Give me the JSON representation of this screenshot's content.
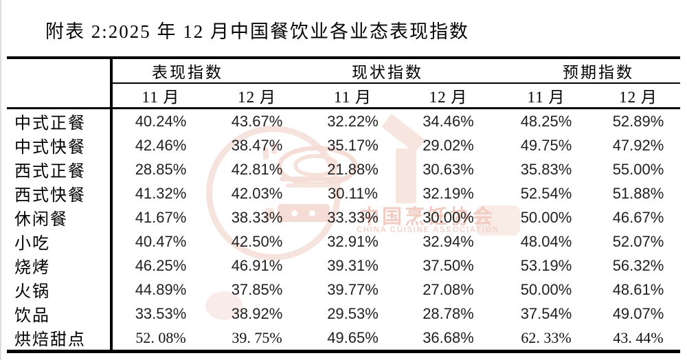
{
  "title": "附表 2:2025 年 12 月中国餐饮业各业态表现指数",
  "table": {
    "col_groups": [
      {
        "label": "表现指数",
        "months": [
          "11 月",
          "12 月"
        ]
      },
      {
        "label": "现状指数",
        "months": [
          "11 月",
          "12 月"
        ]
      },
      {
        "label": "预期指数",
        "months": [
          "11 月",
          "12 月"
        ]
      }
    ],
    "rows": [
      {
        "label": "中式正餐",
        "values": [
          "40.24%",
          "43.67%",
          "32.22%",
          "34.46%",
          "48.25%",
          "52.89%"
        ]
      },
      {
        "label": "中式快餐",
        "values": [
          "42.46%",
          "38.47%",
          "35.17%",
          "29.02%",
          "49.75%",
          "47.92%"
        ]
      },
      {
        "label": "西式正餐",
        "values": [
          "28.85%",
          "42.81%",
          "21.88%",
          "30.63%",
          "35.83%",
          "55.00%"
        ]
      },
      {
        "label": "西式快餐",
        "values": [
          "41.32%",
          "42.03%",
          "30.11%",
          "32.19%",
          "52.54%",
          "51.88%"
        ]
      },
      {
        "label": "休闲餐",
        "values": [
          "41.67%",
          "38.33%",
          "33.33%",
          "30.00%",
          "50.00%",
          "46.67%"
        ]
      },
      {
        "label": "小吃",
        "values": [
          "40.47%",
          "42.50%",
          "32.91%",
          "32.94%",
          "48.04%",
          "52.07%"
        ]
      },
      {
        "label": "烧烤",
        "values": [
          "46.25%",
          "46.91%",
          "39.31%",
          "37.50%",
          "53.19%",
          "56.32%"
        ]
      },
      {
        "label": "火锅",
        "values": [
          "44.89%",
          "37.85%",
          "39.77%",
          "27.08%",
          "50.00%",
          "48.61%"
        ]
      },
      {
        "label": "饮品",
        "values": [
          "33.53%",
          "38.92%",
          "29.53%",
          "28.78%",
          "37.54%",
          "49.07%"
        ]
      },
      {
        "label": "烘焙甜点",
        "values": [
          "52. 08%",
          "39. 75%",
          "49.65%",
          "36.68%",
          "62. 33%",
          "43. 44%"
        ]
      }
    ]
  },
  "watermark": {
    "cn_text": "中国烹饪协会",
    "en_text": "CHINA CUISINE ASSOCIATION",
    "color": "#f1ccc3"
  }
}
